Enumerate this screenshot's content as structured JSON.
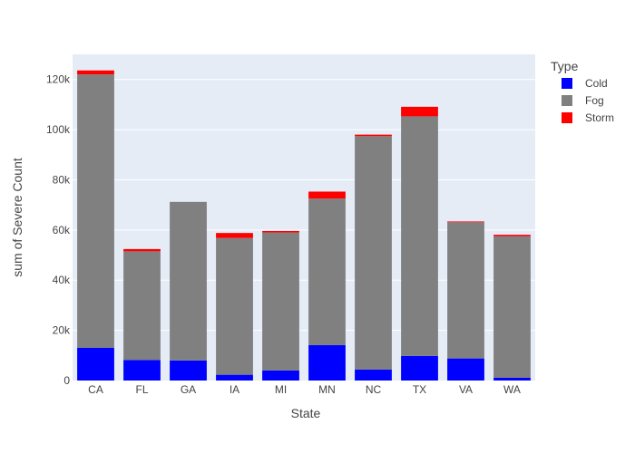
{
  "chart_data": {
    "type": "bar",
    "barmode": "stack",
    "categories": [
      "CA",
      "FL",
      "GA",
      "IA",
      "MI",
      "MN",
      "NC",
      "TX",
      "VA",
      "WA"
    ],
    "series": [
      {
        "name": "Cold",
        "color": "#0000ff",
        "values": [
          13000,
          8200,
          8000,
          2300,
          4000,
          14100,
          4400,
          9800,
          8800,
          1100
        ]
      },
      {
        "name": "Fog",
        "color": "#808080",
        "values": [
          109000,
          43300,
          63200,
          54500,
          55000,
          58400,
          93000,
          95500,
          54300,
          56400
        ]
      },
      {
        "name": "Storm",
        "color": "#ff0000",
        "values": [
          1600,
          900,
          0,
          2000,
          600,
          2800,
          600,
          3800,
          300,
          600
        ]
      }
    ],
    "xlabel": "State",
    "ylabel": "sum of Severe Count",
    "ylim": [
      0,
      130000
    ],
    "yticks": [
      0,
      20000,
      40000,
      60000,
      80000,
      100000,
      120000
    ],
    "ytick_labels": [
      "0",
      "20k",
      "40k",
      "60k",
      "80k",
      "100k",
      "120k"
    ],
    "legend_title": "Type",
    "legend_position": "top-right",
    "grid": true,
    "plot_background": "#e5ecf6"
  }
}
